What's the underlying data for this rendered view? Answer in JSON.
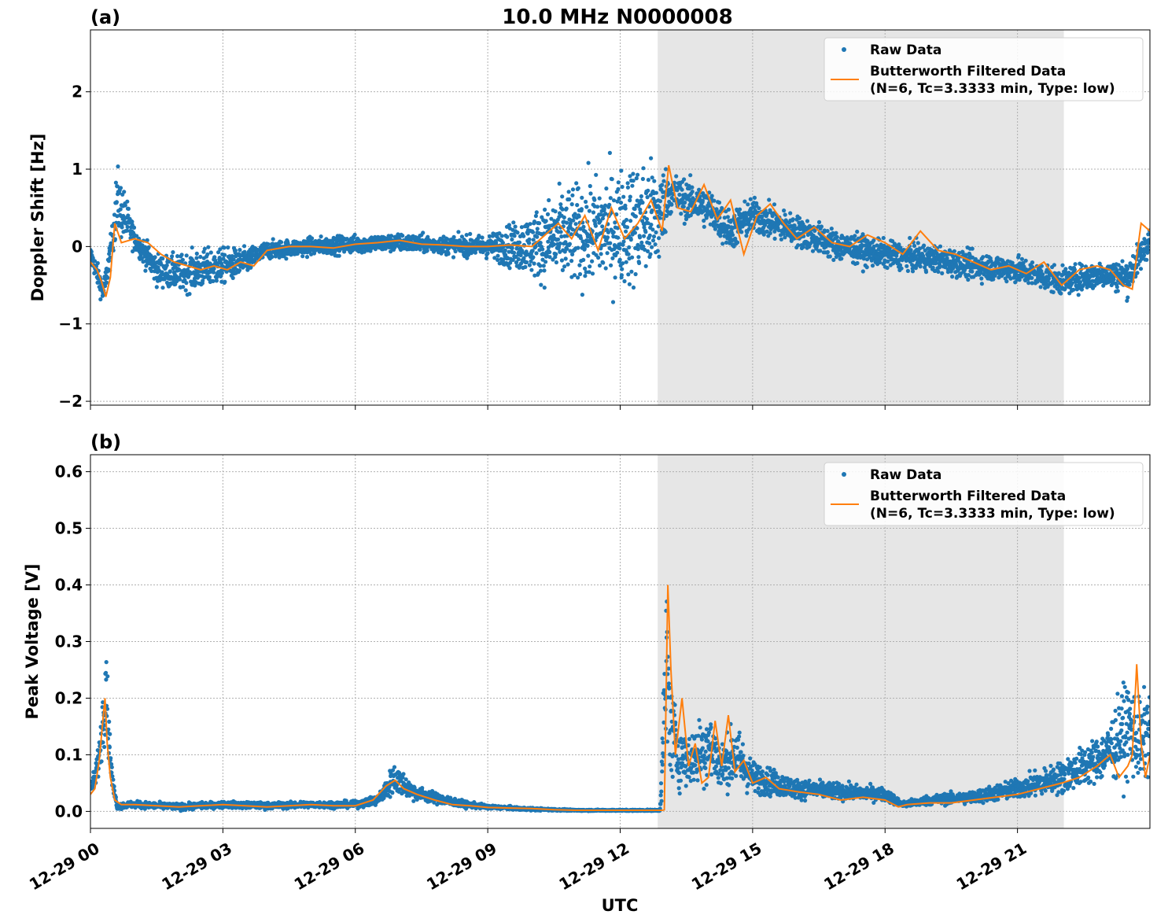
{
  "figure": {
    "title": "10.0 MHz N0000008",
    "xlabel": "UTC"
  },
  "chart_data": [
    {
      "type": "scatter",
      "panel_label": "(a)",
      "title": "10.0 MHz N0000008",
      "xlabel": "",
      "ylabel": "Doppler Shift [Hz]",
      "xlim": [
        "12-29 00:00",
        "12-29 24:00"
      ],
      "ylim": [
        -2.05,
        2.8
      ],
      "yticks": [
        -2,
        -1,
        0,
        1,
        2
      ],
      "ytick_labels": [
        "−2",
        "−1",
        "0",
        "1",
        "2"
      ],
      "grid": true,
      "legend_position": "top-right",
      "shaded_region": {
        "from_hour": 12.85,
        "to_hour": 22.05,
        "color": "#e6e6e6"
      },
      "series": [
        {
          "name": "Raw Data",
          "kind": "scatter",
          "color": "#1f77b4",
          "hours": [
            0,
            0.3,
            0.5,
            0.6,
            1,
            1.5,
            2,
            2.5,
            3,
            3.5,
            4,
            5,
            6,
            7,
            8,
            9,
            10,
            10.5,
            11,
            11.5,
            12,
            12.5,
            12.9,
            13.1,
            13.5,
            14,
            14.5,
            15,
            16,
            17,
            18,
            19,
            20,
            21,
            22,
            23,
            23.5,
            24
          ],
          "center": [
            -0.1,
            -0.6,
            0.1,
            0.6,
            0.1,
            -0.3,
            -0.35,
            -0.3,
            -0.25,
            -0.2,
            -0.05,
            0,
            0.03,
            0.05,
            0.02,
            0,
            0.02,
            0.1,
            0.15,
            0.2,
            0.25,
            0.3,
            0.4,
            0.7,
            0.6,
            0.5,
            0.2,
            0.4,
            0.2,
            0,
            -0.1,
            -0.15,
            -0.25,
            -0.3,
            -0.45,
            -0.35,
            -0.4,
            0.1
          ],
          "spread": [
            0.2,
            0.3,
            0.35,
            0.8,
            0.25,
            0.35,
            0.4,
            0.45,
            0.4,
            0.3,
            0.2,
            0.2,
            0.2,
            0.2,
            0.2,
            0.25,
            0.7,
            1.0,
            1.1,
            1.2,
            1.3,
            1.4,
            1.2,
            0.5,
            0.45,
            0.45,
            0.45,
            0.4,
            0.35,
            0.35,
            0.3,
            0.3,
            0.3,
            0.3,
            0.3,
            0.3,
            0.4,
            0.3
          ]
        },
        {
          "name": "Butterworth Filtered Data\n(N=6, Tc=3.3333 min, Type: low)",
          "kind": "line",
          "color": "#ff7f0e",
          "hours": [
            0,
            0.15,
            0.25,
            0.35,
            0.45,
            0.55,
            0.7,
            1,
            1.3,
            1.6,
            1.9,
            2.2,
            2.5,
            2.8,
            3.1,
            3.4,
            3.7,
            4,
            4.5,
            5,
            5.5,
            6,
            6.5,
            7,
            7.5,
            8,
            8.5,
            9,
            9.5,
            10,
            10.3,
            10.6,
            10.9,
            11.2,
            11.5,
            11.8,
            12.1,
            12.4,
            12.7,
            12.95,
            13.1,
            13.3,
            13.6,
            13.9,
            14.2,
            14.5,
            14.8,
            15.1,
            15.4,
            15.7,
            16,
            16.4,
            16.8,
            17.2,
            17.6,
            18,
            18.4,
            18.8,
            19.2,
            19.6,
            20,
            20.4,
            20.8,
            21.2,
            21.6,
            22,
            22.4,
            22.8,
            23.1,
            23.4,
            23.6,
            23.8,
            24
          ],
          "values": [
            -0.2,
            -0.3,
            -0.45,
            -0.65,
            -0.4,
            0.3,
            0.05,
            0.1,
            0.05,
            -0.1,
            -0.2,
            -0.25,
            -0.3,
            -0.25,
            -0.3,
            -0.2,
            -0.25,
            -0.05,
            0,
            0,
            -0.02,
            0.03,
            0.05,
            0.08,
            0.03,
            0.02,
            0.0,
            0.0,
            0.02,
            0.0,
            0.15,
            0.3,
            0.1,
            0.4,
            -0.05,
            0.5,
            0.1,
            0.3,
            0.6,
            0.2,
            1.05,
            0.5,
            0.45,
            0.8,
            0.35,
            0.6,
            -0.1,
            0.4,
            0.55,
            0.3,
            0.1,
            0.25,
            0.05,
            0.0,
            0.15,
            0.05,
            -0.1,
            0.2,
            -0.05,
            -0.1,
            -0.2,
            -0.3,
            -0.25,
            -0.35,
            -0.2,
            -0.5,
            -0.3,
            -0.25,
            -0.3,
            -0.5,
            -0.55,
            0.3,
            0.2
          ]
        }
      ]
    },
    {
      "type": "scatter",
      "panel_label": "(b)",
      "title": "",
      "xlabel": "UTC",
      "ylabel": "Peak Voltage [V]",
      "xlim": [
        "12-29 00:00",
        "12-29 24:00"
      ],
      "ylim": [
        -0.03,
        0.63
      ],
      "yticks": [
        0.0,
        0.1,
        0.2,
        0.3,
        0.4,
        0.5,
        0.6
      ],
      "ytick_labels": [
        "0.0",
        "0.1",
        "0.2",
        "0.3",
        "0.4",
        "0.5",
        "0.6"
      ],
      "grid": true,
      "legend_position": "top-right",
      "shaded_region": {
        "from_hour": 12.85,
        "to_hour": 22.05,
        "color": "#e6e6e6"
      },
      "series": [
        {
          "name": "Raw Data",
          "kind": "scatter",
          "color": "#1f77b4",
          "hours": [
            0,
            0.1,
            0.2,
            0.3,
            0.35,
            0.4,
            0.5,
            0.6,
            1,
            2,
            3,
            4,
            5,
            6,
            6.5,
            6.9,
            7.2,
            7.5,
            8,
            8.5,
            9,
            9.5,
            10,
            11,
            12,
            12.9,
            13.05,
            13.15,
            13.3,
            13.6,
            14,
            14.3,
            14.6,
            15,
            15.5,
            16,
            17,
            18,
            18.4,
            19,
            20,
            21,
            22,
            22.5,
            23,
            23.5,
            23.8,
            24
          ],
          "center": [
            0.04,
            0.06,
            0.1,
            0.18,
            0.25,
            0.15,
            0.05,
            0.01,
            0.012,
            0.008,
            0.012,
            0.01,
            0.012,
            0.012,
            0.02,
            0.06,
            0.04,
            0.03,
            0.02,
            0.012,
            0.008,
            0.006,
            0.004,
            0.002,
            0.002,
            0.002,
            0.25,
            0.15,
            0.1,
            0.09,
            0.12,
            0.08,
            0.1,
            0.06,
            0.05,
            0.04,
            0.035,
            0.03,
            0.012,
            0.02,
            0.025,
            0.04,
            0.06,
            0.08,
            0.1,
            0.15,
            0.12,
            0.15
          ],
          "spread": [
            0.02,
            0.03,
            0.05,
            0.12,
            0.16,
            0.08,
            0.03,
            0.01,
            0.01,
            0.01,
            0.01,
            0.01,
            0.01,
            0.01,
            0.015,
            0.05,
            0.03,
            0.02,
            0.015,
            0.01,
            0.006,
            0.005,
            0.004,
            0.002,
            0.002,
            0.002,
            0.3,
            0.15,
            0.1,
            0.08,
            0.12,
            0.07,
            0.1,
            0.05,
            0.04,
            0.03,
            0.025,
            0.02,
            0.01,
            0.015,
            0.02,
            0.03,
            0.05,
            0.06,
            0.08,
            0.15,
            0.12,
            0.15
          ]
        },
        {
          "name": "Butterworth Filtered Data\n(N=6, Tc=3.3333 min, Type: low)",
          "kind": "line",
          "color": "#ff7f0e",
          "hours": [
            0,
            0.1,
            0.2,
            0.28,
            0.33,
            0.38,
            0.45,
            0.55,
            0.7,
            1,
            1.5,
            2,
            2.5,
            3,
            3.5,
            4,
            4.5,
            5,
            5.5,
            6,
            6.4,
            6.7,
            6.9,
            7.1,
            7.4,
            7.8,
            8.2,
            8.6,
            9,
            9.5,
            10,
            10.5,
            11,
            11.5,
            12,
            12.5,
            12.95,
            13.0,
            13.08,
            13.15,
            13.25,
            13.4,
            13.55,
            13.7,
            13.85,
            14.0,
            14.15,
            14.3,
            14.45,
            14.6,
            14.8,
            15,
            15.3,
            15.6,
            16,
            16.5,
            17,
            17.5,
            18,
            18.3,
            18.5,
            19,
            19.5,
            20,
            20.5,
            21,
            21.5,
            22,
            22.4,
            22.8,
            23.1,
            23.3,
            23.5,
            23.6,
            23.7,
            23.8,
            23.9,
            24
          ],
          "values": [
            0.03,
            0.04,
            0.09,
            0.16,
            0.2,
            0.12,
            0.06,
            0.02,
            0.012,
            0.012,
            0.01,
            0.008,
            0.01,
            0.012,
            0.01,
            0.008,
            0.01,
            0.012,
            0.01,
            0.01,
            0.02,
            0.045,
            0.055,
            0.04,
            0.03,
            0.02,
            0.012,
            0.01,
            0.007,
            0.006,
            0.005,
            0.003,
            0.002,
            0.002,
            0.002,
            0.002,
            0.002,
            0.003,
            0.4,
            0.25,
            0.1,
            0.2,
            0.08,
            0.12,
            0.05,
            0.06,
            0.16,
            0.08,
            0.17,
            0.07,
            0.09,
            0.05,
            0.06,
            0.04,
            0.035,
            0.03,
            0.02,
            0.025,
            0.02,
            0.008,
            0.012,
            0.015,
            0.015,
            0.02,
            0.025,
            0.03,
            0.04,
            0.05,
            0.06,
            0.08,
            0.1,
            0.06,
            0.08,
            0.1,
            0.26,
            0.12,
            0.06,
            0.1
          ]
        }
      ]
    }
  ],
  "x_axis": {
    "ticks_hours": [
      0,
      3,
      6,
      9,
      12,
      15,
      18,
      21
    ],
    "tick_labels": [
      "12-29 00",
      "12-29 03",
      "12-29 06",
      "12-29 09",
      "12-29 12",
      "12-29 15",
      "12-29 18",
      "12-29 21"
    ]
  },
  "legend": {
    "raw_label": "Raw Data",
    "filtered_label_line1": "Butterworth Filtered Data",
    "filtered_label_line2": "(N=6, Tc=3.3333 min, Type: low)"
  }
}
